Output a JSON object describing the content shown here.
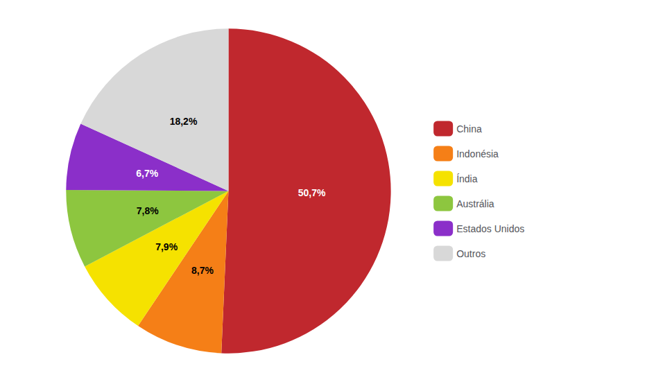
{
  "chart_data": {
    "type": "pie",
    "categories": [
      "China",
      "Indonésia",
      "Índia",
      "Austrália",
      "Estados Unidos",
      "Outros"
    ],
    "values": [
      50.7,
      8.7,
      7.9,
      7.8,
      6.7,
      18.2
    ],
    "value_labels": [
      "50,7%",
      "8,7%",
      "7,9%",
      "7,8%",
      "6,7%",
      "18,2%"
    ],
    "colors": [
      "#c0282e",
      "#f57f17",
      "#f5e200",
      "#8dc63f",
      "#8b2fc9",
      "#d8d8d8"
    ],
    "data_labels": true,
    "legend": "right"
  }
}
